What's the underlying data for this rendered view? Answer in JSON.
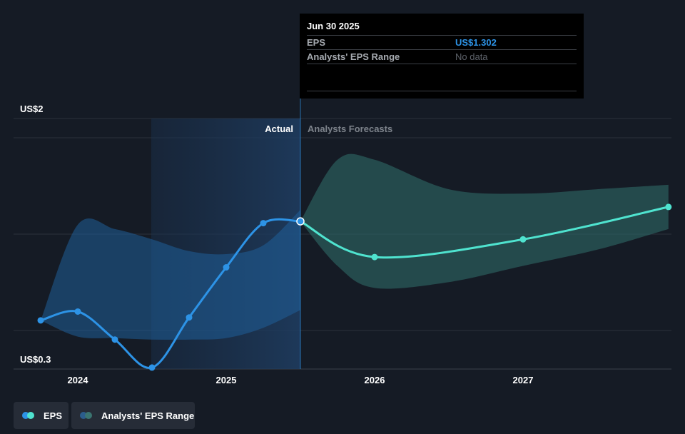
{
  "tooltip": {
    "date": "Jun 30 2025",
    "rows": [
      {
        "label": "EPS",
        "value": "US$1.302"
      },
      {
        "label": "Analysts' EPS Range",
        "value": "No data"
      }
    ]
  },
  "legend": {
    "eps_label": "EPS",
    "range_label": "Analysts' EPS Range"
  },
  "colors": {
    "background": "#151b25",
    "actual_line": "#2d93e6",
    "forecast_line": "#4fe3cf",
    "actual_band": "#1f5f99",
    "forecast_band": "#2f6a67"
  },
  "chart_data": {
    "type": "line",
    "title": "",
    "xlabel": "",
    "ylabel": "",
    "ylim": [
      0.3,
      2.0
    ],
    "y_axis_labels": [
      "US$2",
      "US$0.3"
    ],
    "x_ticks": [
      2024,
      2025,
      2026,
      2027
    ],
    "annotations": {
      "actual": "Actual",
      "forecast": "Analysts Forecasts"
    },
    "series": [
      {
        "name": "EPS",
        "kind": "actual",
        "x": [
          2023.75,
          2024.0,
          2024.25,
          2024.5,
          2024.75,
          2025.0,
          2025.25,
          2025.5
        ],
        "values": [
          0.63,
          0.69,
          0.5,
          0.31,
          0.65,
          0.99,
          1.29,
          1.302
        ]
      },
      {
        "name": "EPS",
        "kind": "forecast",
        "x": [
          2025.5,
          2026.0,
          2027.0,
          2028.0
        ],
        "values": [
          1.302,
          1.06,
          1.18,
          1.4
        ]
      }
    ],
    "ranges": [
      {
        "name": "Analysts' EPS Range",
        "kind": "actual",
        "x": [
          2023.75,
          2024.0,
          2024.25,
          2024.5,
          2024.75,
          2025.0,
          2025.25,
          2025.5
        ],
        "low": [
          0.63,
          0.52,
          0.51,
          0.5,
          0.5,
          0.51,
          0.58,
          0.7
        ],
        "high": [
          0.63,
          1.28,
          1.25,
          1.18,
          1.1,
          1.08,
          1.14,
          1.38
        ]
      },
      {
        "name": "Analysts' EPS Range",
        "kind": "forecast",
        "x": [
          2025.5,
          2025.75,
          2026.0,
          2026.5,
          2027.0,
          2027.5,
          2028.0
        ],
        "low": [
          1.302,
          1.0,
          0.85,
          0.89,
          1.0,
          1.11,
          1.25
        ],
        "high": [
          1.302,
          1.72,
          1.72,
          1.52,
          1.49,
          1.52,
          1.55
        ]
      }
    ]
  }
}
